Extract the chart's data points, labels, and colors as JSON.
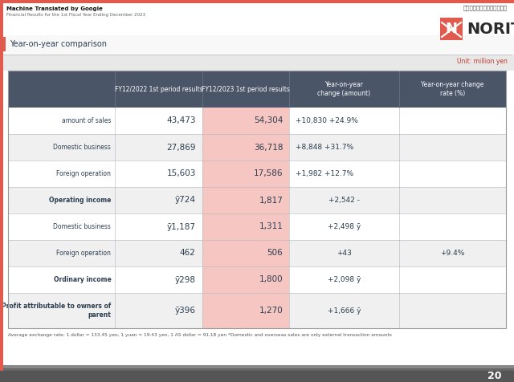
{
  "title_main": "Machine Translated by Google",
  "title_sub": "Financial Results for the 1st Fiscal Year Ending December 2023",
  "section_label": "Year-on-year comparison",
  "unit_label": "Unit: million yen",
  "page_number": "20",
  "footer_note": "Average exchange rate: 1 dollar = 133.45 yen, 1 yuan = 19.43 yen, 1 AS dollar = 91.18 yen *Domestic and overseas sales are only external transaction amounts",
  "col_headers": [
    "FY12/2022 1st period results",
    "FY12/2023 1st period results",
    "Year-on-year\nchange (amount)",
    "Year-on-year change\nrate (%)"
  ],
  "rows": [
    {
      "label": "amount of sales",
      "bold": false,
      "col1": "43,473",
      "col2": "54,304",
      "col3": "+10,830 +24.9%",
      "col4": "",
      "col3_col4_merged": true
    },
    {
      "label": "Domestic business",
      "bold": false,
      "col1": "27,869",
      "col2": "36,718",
      "col3": "+8,848 +31.7%",
      "col4": "",
      "col3_col4_merged": true
    },
    {
      "label": "Foreign operation",
      "bold": false,
      "col1": "15,603",
      "col2": "17,586",
      "col3": "+1,982 +12.7%",
      "col4": "",
      "col3_col4_merged": true
    },
    {
      "label": "Operating income",
      "bold": true,
      "col1": "ȳ724",
      "col2": "1,817",
      "col3": "+2,542 -",
      "col4": "",
      "col3_col4_merged": false
    },
    {
      "label": "Domestic business",
      "bold": false,
      "col1": "ȳ1,187",
      "col2": "1,311",
      "col3": "+2,498 ȳ",
      "col4": "",
      "col3_col4_merged": false
    },
    {
      "label": "Foreign operation",
      "bold": false,
      "col1": "462",
      "col2": "506",
      "col3": "+43",
      "col4": "+9.4%",
      "col3_col4_merged": false
    },
    {
      "label": "Ordinary income",
      "bold": true,
      "col1": "ȳ298",
      "col2": "1,800",
      "col3": "+2,098 ȳ",
      "col4": "",
      "col3_col4_merged": false
    },
    {
      "label": "Profit attributable to owners of\nparent",
      "bold": true,
      "col1": "ȳ396",
      "col2": "1,270",
      "col3": "+1,666 ȳ",
      "col4": "",
      "col3_col4_merged": false
    }
  ],
  "header_bg": "#4a5568",
  "col2_pink_bg": "#f5c6c2",
  "col2_pink_color": "#c0392b",
  "cell_border_color": "#b0b8c1",
  "header_divider_color": "#6a7a8c",
  "accent_color": "#c0392b",
  "row_alt_bg": "#f0f0f0",
  "row_bg": "#ffffff",
  "top_bar_color": "#e05a4e",
  "left_bar_color": "#e05a4e",
  "text_dark": "#2c3e50",
  "japanese_text": "新しい幸せを、わかすこと。"
}
